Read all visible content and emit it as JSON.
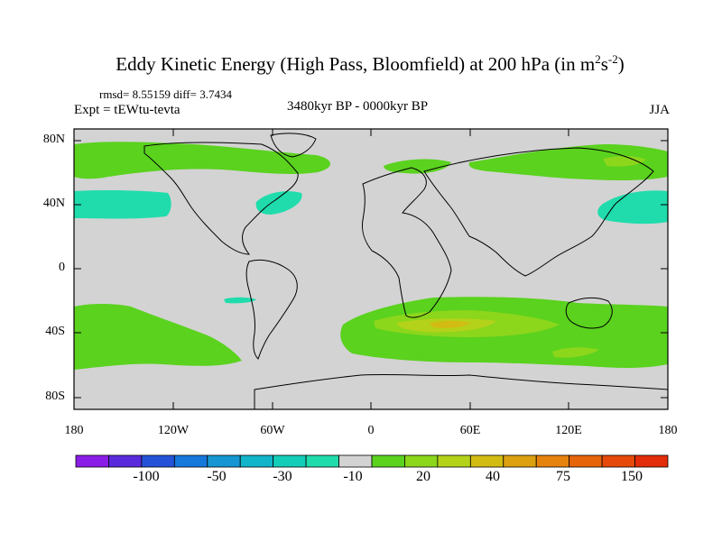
{
  "title": {
    "main": "Eddy Kinetic Energy (High Pass, Bloomfield) at 200 hPa (in m",
    "sup1": "2",
    "mid": "s",
    "sup2": "-2",
    "close": ")"
  },
  "stats": "rmsd= 8.55159 diff= 3.7434",
  "expt": "Expt = tEWtu-tevta",
  "period": "3480kyr BP - 0000kyr BP",
  "season": "JJA",
  "lat_labels": [
    "80N",
    "40N",
    "0",
    "40S",
    "80S"
  ],
  "lon_labels": [
    "180",
    "120W",
    "60W",
    "0",
    "60E",
    "120E",
    "180"
  ],
  "colorbar": {
    "colors": [
      "#8b1ee6",
      "#5a2bdc",
      "#2453d8",
      "#1778dc",
      "#1596d2",
      "#11b4c8",
      "#14cdb9",
      "#20dcac",
      "#d3d3d3",
      "#5ad21e",
      "#8cd61c",
      "#b4d21a",
      "#d2bc14",
      "#dca010",
      "#e6820e",
      "#e6640a",
      "#e64a0a",
      "#e32d0a"
    ],
    "labels": [
      "-100",
      "-50",
      "-30",
      "-10",
      "20",
      "40",
      "75",
      "150"
    ]
  },
  "palette": {
    "background": "#d3d3d3",
    "positive_low": "#5ad21e",
    "positive_mid": "#8cd61c",
    "positive_high": "#b4d21a",
    "positive_peak": "#d2bc14",
    "negative_low": "#20dcac"
  }
}
